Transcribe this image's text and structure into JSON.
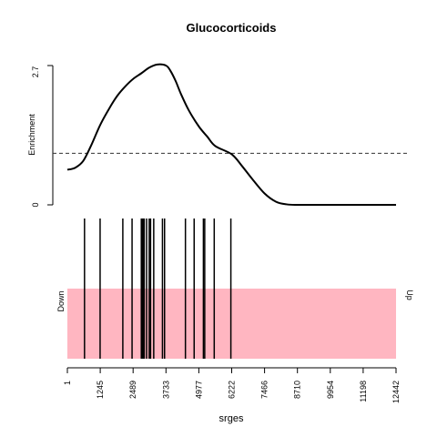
{
  "chart_data": {
    "type": "line",
    "title": "Glucocorticoids",
    "xlabel": "srges",
    "ylabel": "Enrichment",
    "ylim": [
      0,
      2.7
    ],
    "y_ticks": [
      "0",
      "2.7"
    ],
    "x_range": [
      1,
      12442
    ],
    "x_ticks": [
      "1",
      "1245",
      "2489",
      "3733",
      "4977",
      "6222",
      "7466",
      "8710",
      "9954",
      "11198",
      "12442"
    ],
    "threshold": 1.0,
    "enrichment_curve": {
      "x": [
        1,
        300,
        600,
        900,
        1245,
        1600,
        1900,
        2200,
        2489,
        2800,
        3100,
        3400,
        3733,
        3900,
        4100,
        4300,
        4600,
        4977,
        5300,
        5600,
        6222,
        6600,
        7000,
        7466,
        7900,
        8300,
        8710,
        9954,
        11198,
        12442
      ],
      "y": [
        0.68,
        0.72,
        0.85,
        1.15,
        1.55,
        1.88,
        2.12,
        2.3,
        2.44,
        2.55,
        2.66,
        2.72,
        2.7,
        2.6,
        2.4,
        2.15,
        1.83,
        1.52,
        1.32,
        1.14,
        0.98,
        0.76,
        0.5,
        0.22,
        0.06,
        0.01,
        0.0,
        0.0,
        0.0,
        0.0
      ]
    },
    "gene_hits": [
      650,
      1240,
      2100,
      2450,
      2800,
      2830,
      2860,
      2880,
      2910,
      3000,
      3100,
      3150,
      3270,
      3600,
      3680,
      4470,
      4800,
      5150,
      5200,
      5560,
      6190
    ],
    "bottom_labels": {
      "left": "Down",
      "right": "Up"
    },
    "colors": {
      "band": "#FFB6C1",
      "line": "#000000",
      "threshold": "#333333"
    }
  }
}
